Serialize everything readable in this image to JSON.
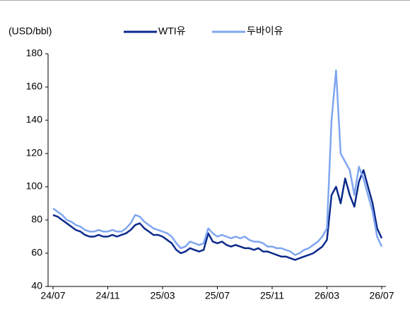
{
  "chart_data": {
    "type": "line",
    "y_axis_label": "(USD/bbl)",
    "categories": [
      "24/07",
      null,
      null,
      null,
      null,
      null,
      null,
      null,
      null,
      null,
      null,
      null,
      "24/11",
      null,
      null,
      null,
      null,
      null,
      null,
      null,
      null,
      null,
      null,
      null,
      "25/03",
      null,
      null,
      null,
      null,
      null,
      null,
      null,
      null,
      null,
      null,
      null,
      "25/07",
      null,
      null,
      null,
      null,
      null,
      null,
      null,
      null,
      null,
      null,
      null,
      "25/11",
      null,
      null,
      null,
      null,
      null,
      null,
      null,
      null,
      null,
      null,
      null,
      "26/03",
      null,
      null,
      null,
      null,
      null,
      null,
      null,
      null,
      null,
      null,
      null,
      "26/07"
    ],
    "series": [
      {
        "name": "WTI유",
        "color": "#0c2a8c",
        "values": [
          83,
          82,
          80,
          78,
          76,
          74,
          73,
          71,
          70,
          70,
          71,
          70,
          70,
          71,
          70,
          71,
          72,
          74,
          77,
          78,
          75,
          73,
          71,
          71,
          70,
          68,
          66,
          62,
          60,
          61,
          63,
          62,
          61,
          62,
          72,
          67,
          66,
          67,
          65,
          64,
          65,
          64,
          63,
          63,
          62,
          63,
          61,
          61,
          60,
          59,
          58,
          58,
          57,
          56,
          57,
          58,
          59,
          60,
          62,
          64,
          68,
          95,
          100,
          90,
          105,
          95,
          88,
          103,
          110,
          100,
          90,
          75,
          69
        ]
      },
      {
        "name": "두바이유",
        "color": "#7fa6f0",
        "values": [
          87,
          85,
          83,
          80,
          79,
          77,
          76,
          74,
          73,
          73,
          74,
          73,
          73,
          74,
          73,
          73,
          75,
          78,
          83,
          82,
          79,
          77,
          75,
          74,
          73,
          72,
          70,
          66,
          63,
          64,
          67,
          66,
          65,
          66,
          75,
          72,
          70,
          71,
          70,
          69,
          70,
          69,
          70,
          68,
          67,
          67,
          66,
          64,
          64,
          63,
          63,
          62,
          61,
          59,
          60,
          62,
          63,
          65,
          67,
          70,
          75,
          140,
          170,
          120,
          115,
          110,
          95,
          112,
          105,
          95,
          85,
          70,
          64
        ]
      }
    ],
    "ylim": [
      40,
      180
    ],
    "yticks": [
      40,
      60,
      80,
      100,
      120,
      140,
      160,
      180
    ],
    "grid": false
  }
}
